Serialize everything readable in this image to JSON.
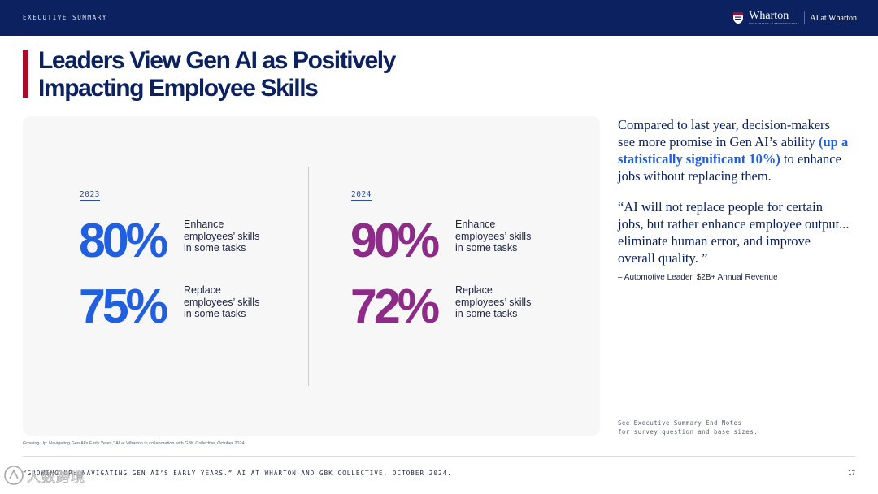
{
  "header": {
    "section_label": "EXECUTIVE SUMMARY",
    "brand_name": "Wharton",
    "brand_sub": "UNIVERSITY of PENNSYLVANIA",
    "brand_ai": "AI at Wharton"
  },
  "title": {
    "line1": "Leaders View Gen AI as Positively",
    "line2": "Impacting Employee Skills"
  },
  "columns": [
    {
      "year": "2023",
      "stats": [
        {
          "value": "80%",
          "line1": "Enhance",
          "line2": "employees’ skills",
          "line3": "in some tasks"
        },
        {
          "value": "75%",
          "line1": "Replace",
          "line2": "employees’ skills",
          "line3": "in some tasks"
        }
      ]
    },
    {
      "year": "2024",
      "stats": [
        {
          "value": "90%",
          "line1": "Enhance",
          "line2": "employees’ skills",
          "line3": "in some tasks"
        },
        {
          "value": "72%",
          "line1": "Replace",
          "line2": "employees’ skills",
          "line3": "in some tasks"
        }
      ]
    }
  ],
  "summary": {
    "before": "Compared to last year, decision-makers see more promise in Gen AI’s ability ",
    "highlight": "(up a statistically significant 10%)",
    "after": " to enhance jobs without replacing them."
  },
  "quote": {
    "text": "“AI will not replace people for certain jobs, but rather enhance employee output... eliminate human error, and improve overall quality. ”",
    "attribution": "–  Automotive Leader, $2B+ Annual Revenue"
  },
  "endnotes": {
    "line1": "See Executive Summary End Notes",
    "line2": "for survey question and base sizes."
  },
  "source_note": "Growing Up: Navigating Gen AI’s Early Years,” AI at Wharton in collaboration with GBK Collective, October 2024",
  "footer": {
    "citation": "“GROWING UP: NAVIGATING GEN AI’S EARLY YEARS.” AI AT WHARTON AND GBK COLLECTIVE, OCTOBER 2024.",
    "page": "17"
  },
  "watermark": {
    "text": "人数跨境"
  },
  "colors": {
    "navy": "#0c2260",
    "accent_red": "#a90c2a",
    "stat_blue": "#1f5fe0",
    "stat_purple": "#8e2a88"
  }
}
